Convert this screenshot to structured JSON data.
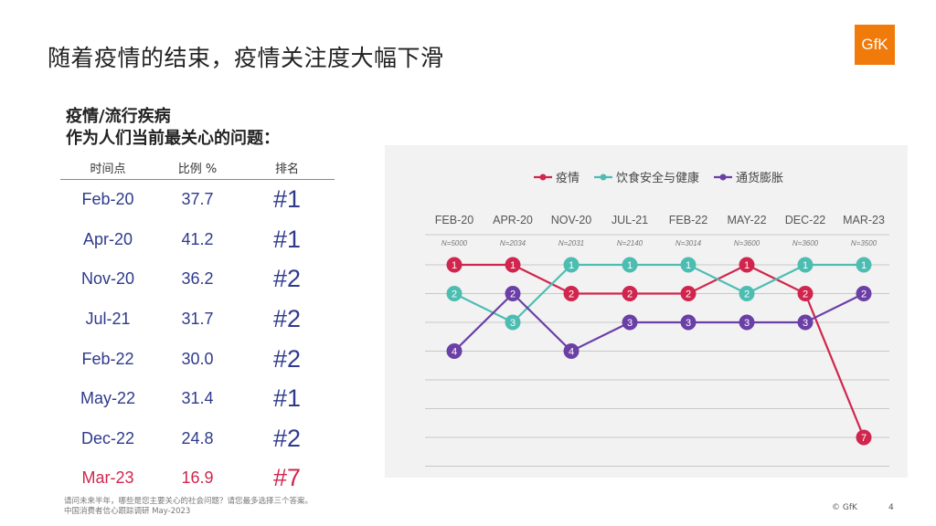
{
  "page": {
    "title": "随着疫情的结束，疫情关注度大幅下滑",
    "logo_text": "GfK",
    "subtitle_line1": "疫情/流行疾病",
    "subtitle_line2": "作为人们当前最关心的问题：",
    "footnote_line1": "请问未来半年，哪些是您主要关心的社会问题？请您最多选择三个答案。",
    "footnote_line2": "中国消费者信心跟踪调研 May-2023",
    "copyright": "© GfK",
    "page_number": "4"
  },
  "table": {
    "headers": [
      "时间点",
      "比例 %",
      "排名"
    ],
    "rows": [
      {
        "period": "Feb-20",
        "pct": "37.7",
        "rank": "#1"
      },
      {
        "period": "Apr-20",
        "pct": "41.2",
        "rank": "#1"
      },
      {
        "period": "Nov-20",
        "pct": "36.2",
        "rank": "#2"
      },
      {
        "period": "Jul-21",
        "pct": "31.7",
        "rank": "#2"
      },
      {
        "period": "Feb-22",
        "pct": "30.0",
        "rank": "#2"
      },
      {
        "period": "May-22",
        "pct": "31.4",
        "rank": "#1"
      },
      {
        "period": "Dec-22",
        "pct": "24.8",
        "rank": "#2"
      },
      {
        "period": "Mar-23",
        "pct": "16.9",
        "rank": "#7"
      }
    ],
    "highlight_color": "#d0264e",
    "text_color": "#2f3a8c"
  },
  "chart_data": {
    "type": "line",
    "categories": [
      "FEB-20",
      "APR-20",
      "NOV-20",
      "JUL-21",
      "FEB-22",
      "MAY-22",
      "DEC-22",
      "MAR-23"
    ],
    "sample_sizes": [
      "N=5000",
      "N=2034",
      "N=2031",
      "N=2140",
      "N=3014",
      "N=3600",
      "N=3600",
      "N=3500"
    ],
    "y_axis": "rank",
    "ylim": [
      1,
      7
    ],
    "y_inverted": true,
    "grid": true,
    "legend_position": "top-center",
    "series": [
      {
        "name": "疫情",
        "color": "#d0264e",
        "values": [
          1,
          1,
          2,
          2,
          2,
          1,
          2,
          7
        ]
      },
      {
        "name": "饮食安全与健康",
        "color": "#4dbdb2",
        "values": [
          2,
          3,
          1,
          1,
          1,
          2,
          1,
          1
        ]
      },
      {
        "name": "通货膨胀",
        "color": "#6a3fa6",
        "values": [
          4,
          2,
          4,
          3,
          3,
          3,
          3,
          2
        ]
      }
    ]
  }
}
